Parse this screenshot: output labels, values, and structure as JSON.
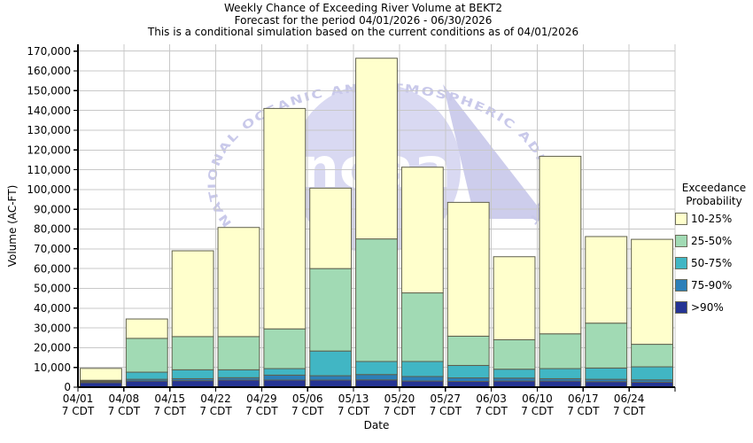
{
  "chart_data": {
    "type": "bar",
    "stacked": true,
    "title": "Weekly Chance of Exceeding River Volume at BEKT2",
    "subtitle1": "Forecast for the period 04/01/2026 - 06/30/2026",
    "subtitle2": "This is a conditional simulation based on the current conditions as of 04/01/2026",
    "xlabel": "Date",
    "ylabel": "Volume (AC-FT)",
    "ylim": [
      0,
      170000
    ],
    "y_tick_step": 10000,
    "grid": true,
    "legend_position": "right",
    "categories": [
      "04/01",
      "04/08",
      "04/15",
      "04/22",
      "04/29",
      "05/06",
      "05/13",
      "05/20",
      "05/27",
      "06/03",
      "06/10",
      "06/17",
      "06/24"
    ],
    "x_sublabel": "7 CDT",
    "series": [
      {
        "name": ">90%",
        "color": "#253494",
        "values": [
          2300,
          3100,
          3300,
          3600,
          3600,
          3600,
          3700,
          3100,
          2900,
          3100,
          3100,
          2800,
          2500
        ]
      },
      {
        "name": "75-90%",
        "color": "#2C7FB8",
        "values": [
          400,
          900,
          1000,
          1200,
          2500,
          2200,
          2700,
          2300,
          1800,
          1500,
          1200,
          1200,
          1200
        ]
      },
      {
        "name": "50-75%",
        "color": "#41B6C4",
        "values": [
          400,
          3600,
          4500,
          4000,
          3300,
          12500,
          6600,
          7600,
          6300,
          4500,
          5100,
          5700,
          6600
        ]
      },
      {
        "name": "25-50%",
        "color": "#A1DAB4",
        "values": [
          400,
          17100,
          16800,
          16800,
          20100,
          41700,
          62000,
          34700,
          14800,
          14900,
          17600,
          22700,
          11400
        ]
      },
      {
        "name": "10-25%",
        "color": "#FFFFCC",
        "values": [
          6000,
          9800,
          43400,
          55200,
          111500,
          40700,
          91400,
          63600,
          67700,
          42000,
          89800,
          43800,
          53100
        ]
      }
    ],
    "stack_totals": [
      9500,
      34500,
      69000,
      80800,
      141000,
      100700,
      166400,
      111300,
      93500,
      66000,
      116800,
      76200,
      74800
    ]
  },
  "legend": {
    "title_line1": "Exceedance",
    "title_line2": "Probability"
  },
  "watermark": {
    "arc_text": "NATIONAL OCEANIC AND ATMOSPHERIC ADMINISTRATION",
    "center_text": "noaa",
    "circle_color": "#d9d9f2",
    "wedge_color": "#cdcdec",
    "arc_text_color": "#c9c9ea",
    "center_text_color": "#ffffff"
  },
  "colors": {
    "background": "#ffffff",
    "grid": "#c8c8c8",
    "axis": "#000000",
    "bar_border": "#5f5f4d",
    "text": "#000000"
  }
}
